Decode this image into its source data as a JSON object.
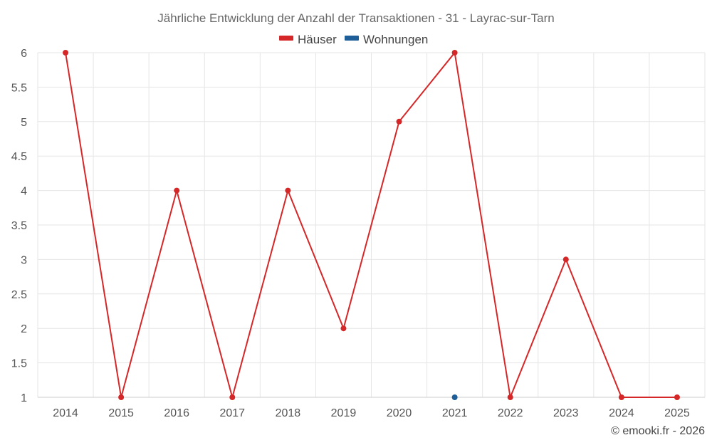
{
  "chart_data": {
    "type": "line",
    "title": "Jährliche Entwicklung der Anzahl der Transaktionen - 31 - Layrac-sur-Tarn",
    "x": [
      "2014",
      "2015",
      "2016",
      "2017",
      "2018",
      "2019",
      "2020",
      "2021",
      "2022",
      "2023",
      "2024",
      "2025"
    ],
    "yticks": [
      "1",
      "1.5",
      "2",
      "2.5",
      "3",
      "3.5",
      "4",
      "4.5",
      "5",
      "5.5",
      "6"
    ],
    "ylim": [
      1,
      6
    ],
    "grid": true,
    "legend_position": "top-center",
    "series": [
      {
        "name": "Häuser",
        "color": "#d62728",
        "values": [
          6,
          1,
          4,
          1,
          4,
          2,
          5,
          6,
          1,
          3,
          1,
          1
        ]
      },
      {
        "name": "Wohnungen",
        "color": "#1f5f99",
        "values": [
          null,
          null,
          null,
          null,
          null,
          null,
          null,
          1,
          null,
          null,
          null,
          null
        ]
      }
    ]
  },
  "credit": "© emooki.fr - 2026"
}
